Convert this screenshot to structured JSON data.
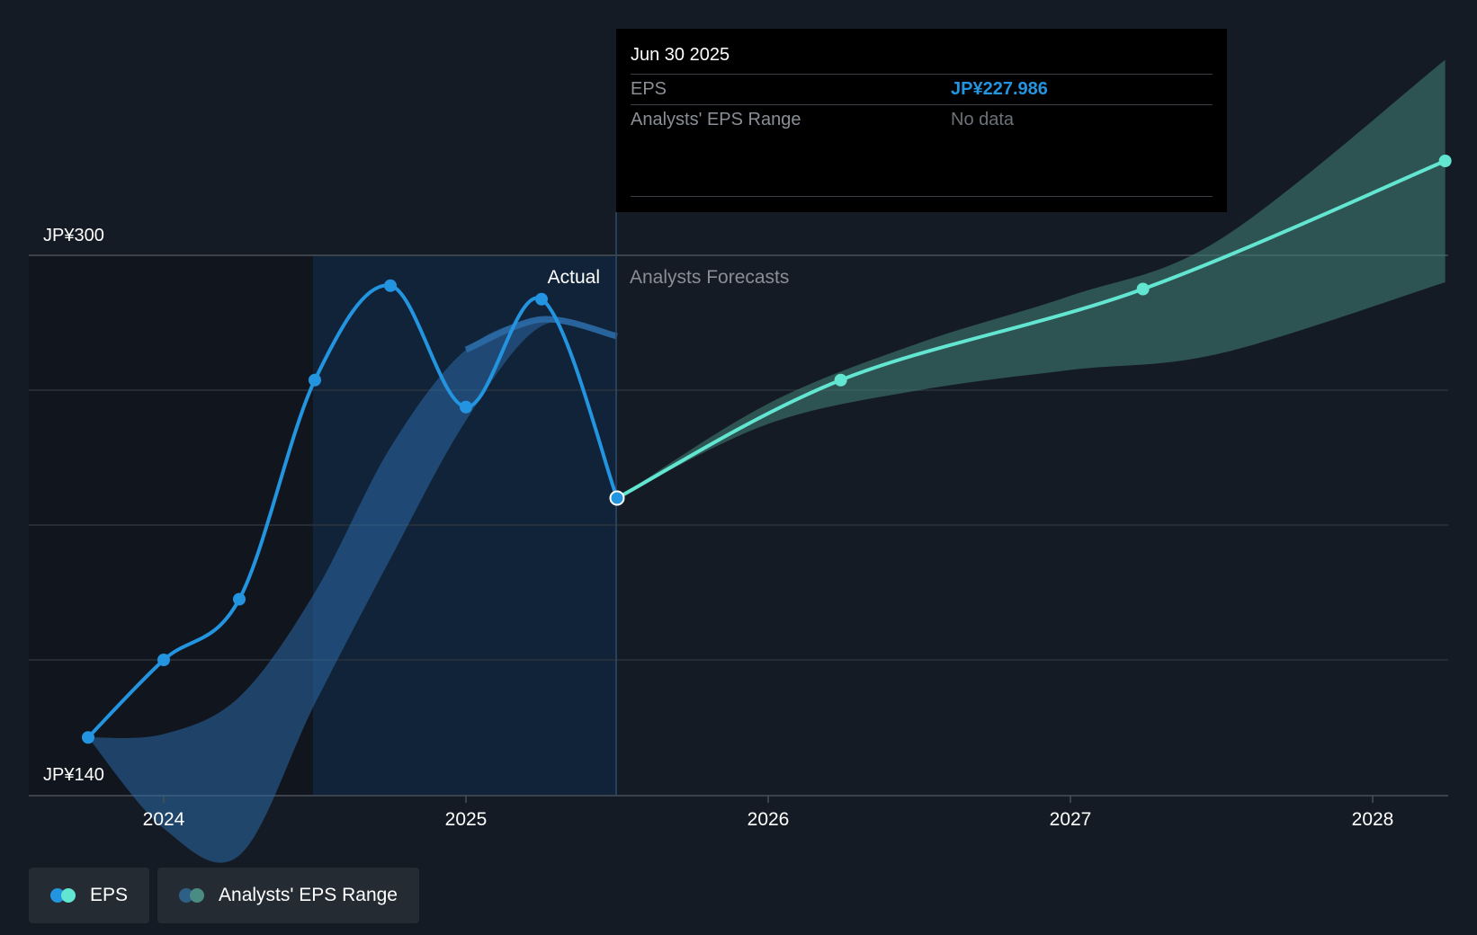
{
  "chart_data": {
    "type": "line",
    "y_axis": {
      "min_label": "JP¥140",
      "max_label": "JP¥300",
      "ylim": [
        140,
        300
      ]
    },
    "x_ticks": [
      "2024",
      "2025",
      "2026",
      "2027",
      "2028"
    ],
    "section_labels": {
      "actual": "Actual",
      "forecast": "Analysts Forecasts"
    },
    "series": [
      {
        "name": "EPS (actual)",
        "x": [
          2023.75,
          2024.0,
          2024.25,
          2024.5,
          2024.75,
          2025.0,
          2025.25,
          2025.5
        ],
        "values": [
          157,
          180,
          198,
          263,
          291,
          255,
          287,
          228
        ]
      },
      {
        "name": "EPS (forecast)",
        "x": [
          2025.5,
          2026.24,
          2027.24,
          2028.24
        ],
        "values": [
          228,
          263,
          290,
          328
        ]
      }
    ],
    "range_band": {
      "name": "Analysts' EPS Range (historical)",
      "x": [
        2023.75,
        2024.0,
        2024.25,
        2024.5,
        2024.75,
        2025.0,
        2025.25,
        2025.5
      ],
      "low": [
        157,
        130,
        122,
        167,
        210,
        251,
        279,
        276
      ],
      "high": [
        157,
        158,
        169,
        200,
        243,
        272,
        281,
        276
      ]
    },
    "forecast_band": {
      "name": "Analysts' EPS Range (forecast)",
      "x": [
        2025.5,
        2026.0,
        2026.5,
        2027.0,
        2027.5,
        2028.24
      ],
      "low": [
        228,
        250,
        260,
        266,
        271,
        292
      ],
      "high": [
        228,
        256,
        274,
        288,
        305,
        358
      ]
    },
    "highlight_point": {
      "x": 2025.5,
      "value": 228
    }
  },
  "tooltip": {
    "date": "Jun 30 2025",
    "rows": [
      {
        "label": "EPS",
        "value": "JP¥227.986"
      },
      {
        "label": "Analysts' EPS Range",
        "value": "No data"
      }
    ]
  },
  "legend": [
    {
      "label": "EPS"
    },
    {
      "label": "Analysts' EPS Range"
    }
  ],
  "colors": {
    "actual_line": "#2394df",
    "forecast_line": "#62e6d1",
    "actual_band": "#2b6aa6",
    "forecast_band": "#3e7a72",
    "legend_range_1": "#2e5f87",
    "legend_range_2": "#4a8c83"
  }
}
